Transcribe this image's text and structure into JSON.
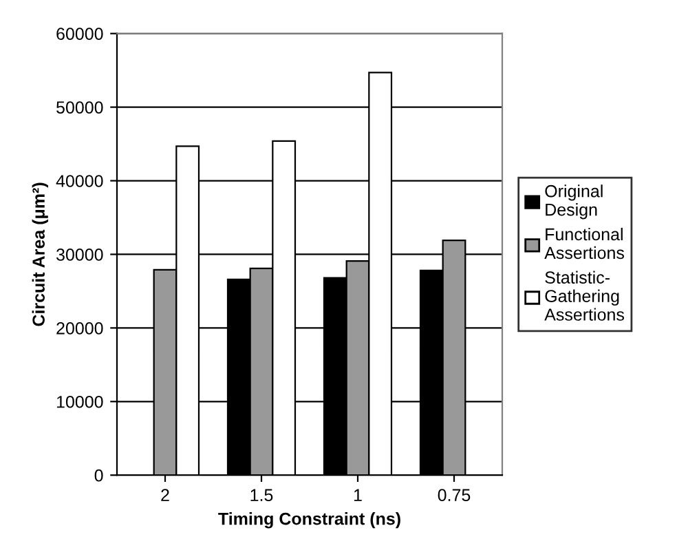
{
  "chart_data": {
    "type": "bar",
    "xlabel": "Timing Constraint (ns)",
    "ylabel": "Circuit Area (μm²)",
    "categories": [
      "2",
      "1.5",
      "1",
      "0.75"
    ],
    "series": [
      {
        "name": "Original Design",
        "color": "#000000",
        "values": [
          null,
          26600,
          26800,
          27800
        ]
      },
      {
        "name": "Functional Assertions",
        "color": "#999999",
        "values": [
          27900,
          28100,
          29100,
          31900
        ]
      },
      {
        "name": "Statistic-Gathering Assertions",
        "color": "#ffffff",
        "values": [
          44700,
          45400,
          54700,
          null
        ]
      }
    ],
    "ylim": [
      0,
      60000
    ],
    "yticks": [
      0,
      10000,
      20000,
      30000,
      40000,
      50000,
      60000
    ],
    "grid": "y",
    "legend": "right"
  }
}
